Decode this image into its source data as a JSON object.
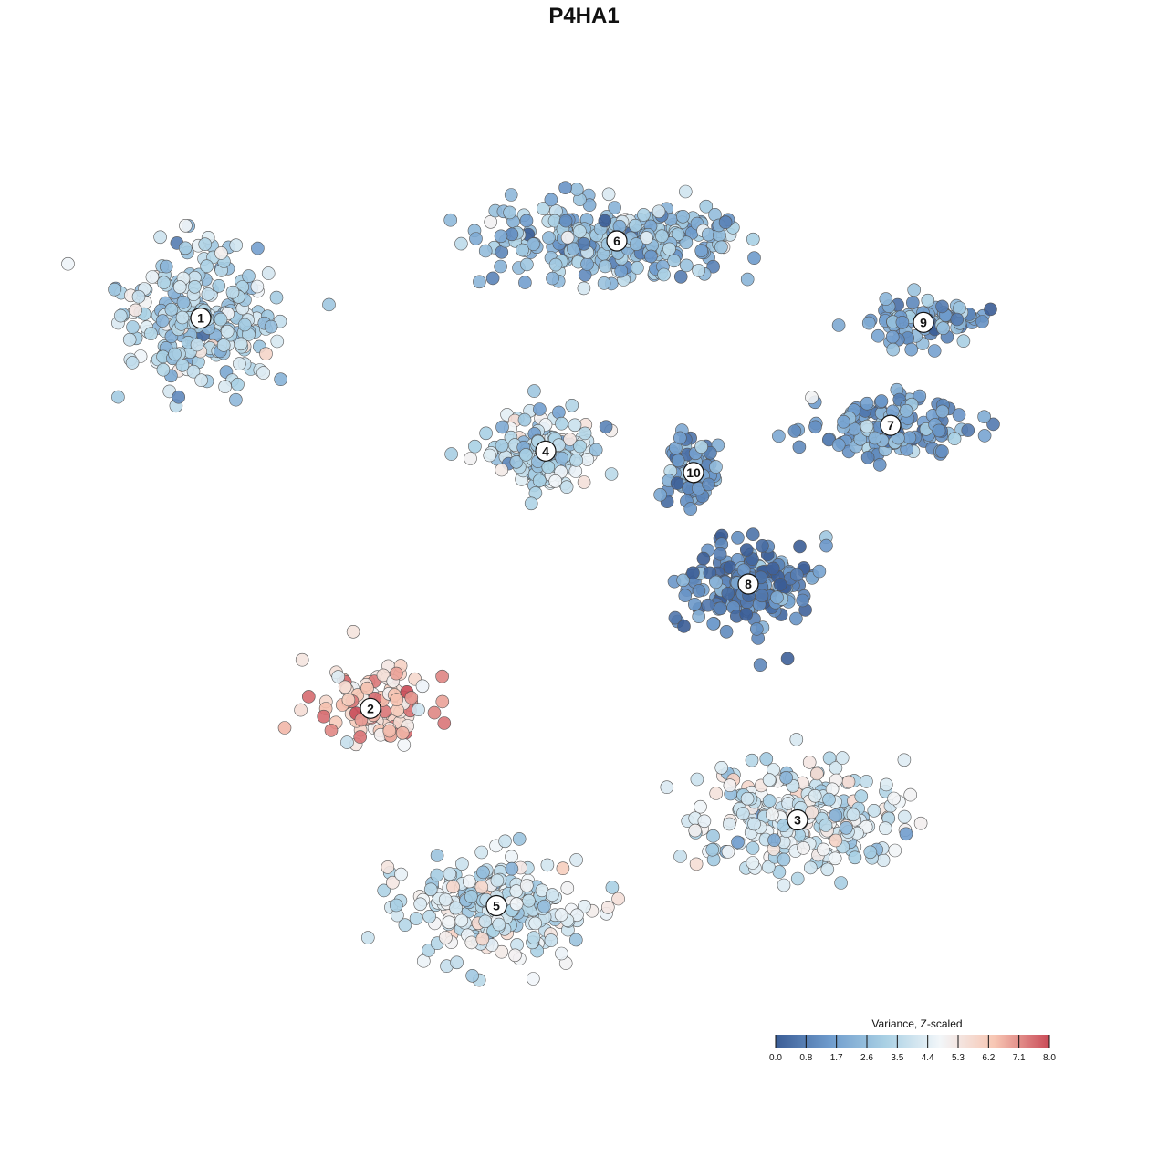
{
  "chart_data": {
    "type": "scatter",
    "title": "P4HA1",
    "xlabel": "",
    "ylabel": "",
    "grid": false,
    "colorbar": {
      "title": "Variance, Z-scaled",
      "ticks": [
        "0.0",
        "0.8",
        "1.7",
        "2.6",
        "3.5",
        "4.4",
        "5.3",
        "6.2",
        "7.1",
        "8.0"
      ],
      "min": 0.0,
      "max": 8.0,
      "placement": "bottom-right",
      "colors": [
        "#3b5d96",
        "#6f9ccd",
        "#a9d0e4",
        "#f2f6f9",
        "#f7c6b3",
        "#c94a57"
      ]
    },
    "clusters": [
      {
        "label": "1",
        "x": -0.7,
        "y": 0.62,
        "value": 3.4
      },
      {
        "label": "2",
        "x": -0.39,
        "y": -0.29,
        "value": 6.2
      },
      {
        "label": "3",
        "x": 0.39,
        "y": -0.55,
        "value": 4.0
      },
      {
        "label": "4",
        "x": -0.07,
        "y": 0.31,
        "value": 3.6
      },
      {
        "label": "5",
        "x": -0.16,
        "y": -0.75,
        "value": 3.9
      },
      {
        "label": "6",
        "x": 0.06,
        "y": 0.8,
        "value": 2.6
      },
      {
        "label": "7",
        "x": 0.56,
        "y": 0.37,
        "value": 1.7
      },
      {
        "label": "8",
        "x": 0.3,
        "y": 0.0,
        "value": 1.0
      },
      {
        "label": "9",
        "x": 0.62,
        "y": 0.61,
        "value": 2.0
      },
      {
        "label": "10",
        "x": 0.2,
        "y": 0.26,
        "value": 1.5
      }
    ]
  }
}
